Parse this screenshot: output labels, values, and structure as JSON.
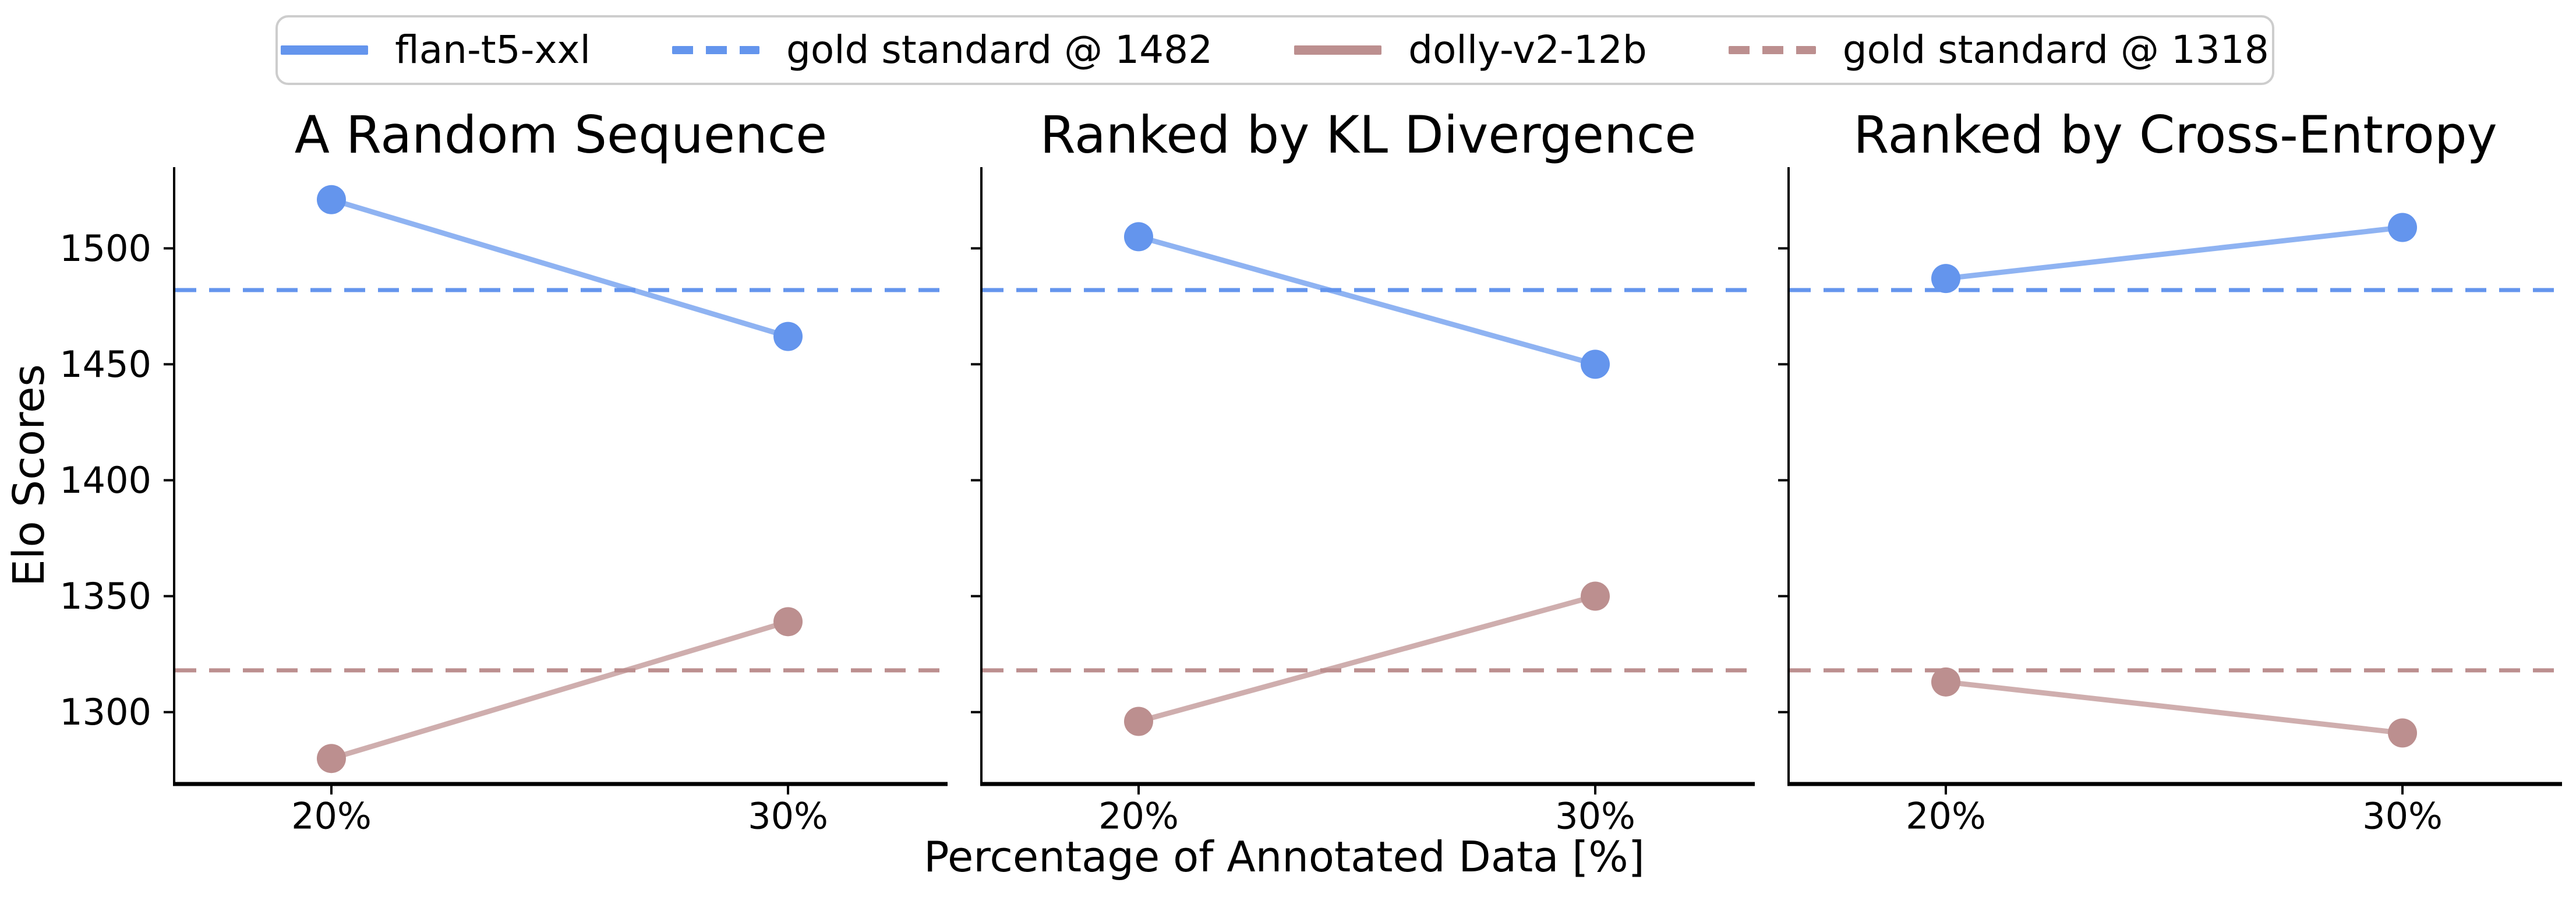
{
  "legend": {
    "items": [
      {
        "label": "flan-t5-xxl",
        "color": "#6495ED",
        "style": "solid"
      },
      {
        "label": "gold standard @ 1482",
        "color": "#6495ED",
        "style": "dashed"
      },
      {
        "label": "dolly-v2-12b",
        "color": "#BC8F8F",
        "style": "solid"
      },
      {
        "label": "gold standard @ 1318",
        "color": "#BC8F8F",
        "style": "dashed"
      }
    ]
  },
  "chart_data": {
    "type": "line",
    "categories": [
      "20%",
      "30%"
    ],
    "xlabel": "Percentage of Annotated Data [%]",
    "ylabel": "Elo Scores",
    "yticks": [
      1300,
      1350,
      1400,
      1450,
      1500
    ],
    "ylim": [
      1269,
      1535
    ],
    "grid": false,
    "legend_position": "top",
    "panels": [
      {
        "title": "A Random Sequence",
        "series": [
          {
            "name": "flan-t5-xxl",
            "color": "#6495ED",
            "values": [
              1521,
              1462
            ]
          },
          {
            "name": "dolly-v2-12b",
            "color": "#BC8F8F",
            "values": [
              1280,
              1339
            ]
          }
        ]
      },
      {
        "title": "Ranked by KL Divergence",
        "series": [
          {
            "name": "flan-t5-xxl",
            "color": "#6495ED",
            "values": [
              1505,
              1450
            ]
          },
          {
            "name": "dolly-v2-12b",
            "color": "#BC8F8F",
            "values": [
              1296,
              1350
            ]
          }
        ]
      },
      {
        "title": "Ranked by Cross-Entropy",
        "series": [
          {
            "name": "flan-t5-xxl",
            "color": "#6495ED",
            "values": [
              1487,
              1509
            ]
          },
          {
            "name": "dolly-v2-12b",
            "color": "#BC8F8F",
            "values": [
              1313,
              1291
            ]
          }
        ]
      }
    ],
    "reference_lines": [
      {
        "label": "gold standard @ 1482",
        "value": 1482,
        "color": "#6495ED"
      },
      {
        "label": "gold standard @ 1318",
        "value": 1318,
        "color": "#BC8F8F"
      }
    ]
  }
}
